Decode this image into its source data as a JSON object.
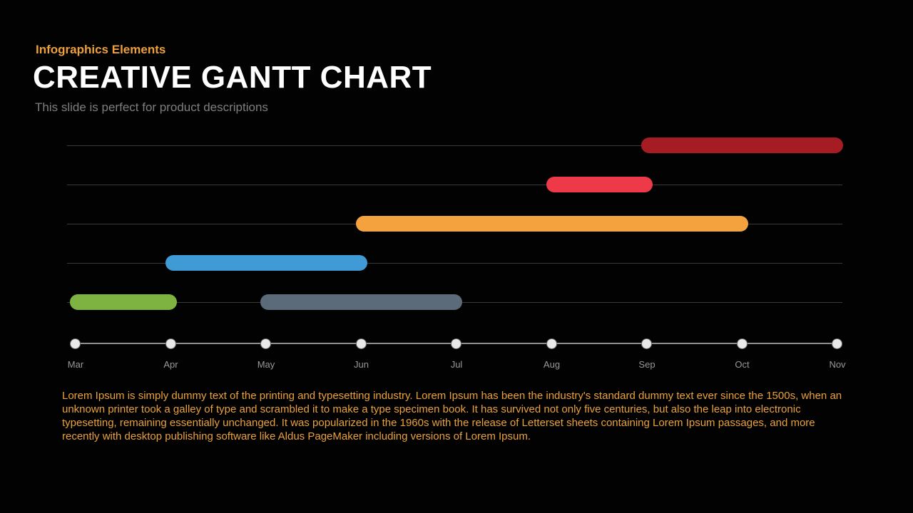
{
  "header": {
    "eyebrow": "Infographics Elements",
    "title": "CREATIVE GANTT CHART",
    "subtitle": "This slide is perfect for product descriptions"
  },
  "chart_data": {
    "type": "gantt",
    "x_axis": {
      "labels": [
        "Mar",
        "Apr",
        "May",
        "Jun",
        "Jul",
        "Aug",
        "Sep",
        "Oct",
        "Nov"
      ]
    },
    "rows": [
      {
        "bars": [
          {
            "start": "Sep",
            "end": "Nov",
            "color": "#a51d23"
          }
        ]
      },
      {
        "bars": [
          {
            "start": "Aug",
            "end": "Sep",
            "color": "#ee3948"
          }
        ]
      },
      {
        "bars": [
          {
            "start": "Jun",
            "end": "Oct",
            "color": "#f4a23d"
          }
        ]
      },
      {
        "bars": [
          {
            "start": "Apr",
            "end": "Jun",
            "color": "#3f9ad6"
          }
        ]
      },
      {
        "bars": [
          {
            "start": "Mar",
            "end": "Apr",
            "color": "#7fb341"
          },
          {
            "start": "May",
            "end": "Jul",
            "color": "#5c6b7a"
          }
        ]
      }
    ],
    "colors": {
      "gridline": "#3a3a3a",
      "axis_line": "#8f8f8f",
      "axis_dot": "#e9e9e9",
      "axis_label": "#999999"
    }
  },
  "body": {
    "paragraph": "Lorem Ipsum is simply dummy text of the printing and typesetting industry. Lorem Ipsum has been the industry's standard dummy text ever since the 1500s, when an unknown printer took a galley of type and scrambled it to make a type specimen book. It has survived not only five centuries, but also the leap into electronic typesetting, remaining essentially unchanged. It was popularized in the 1960s with the release of Letterset sheets containing Lorem Ipsum passages, and more recently with desktop publishing software like Aldus PageMaker including versions of Lorem Ipsum."
  }
}
